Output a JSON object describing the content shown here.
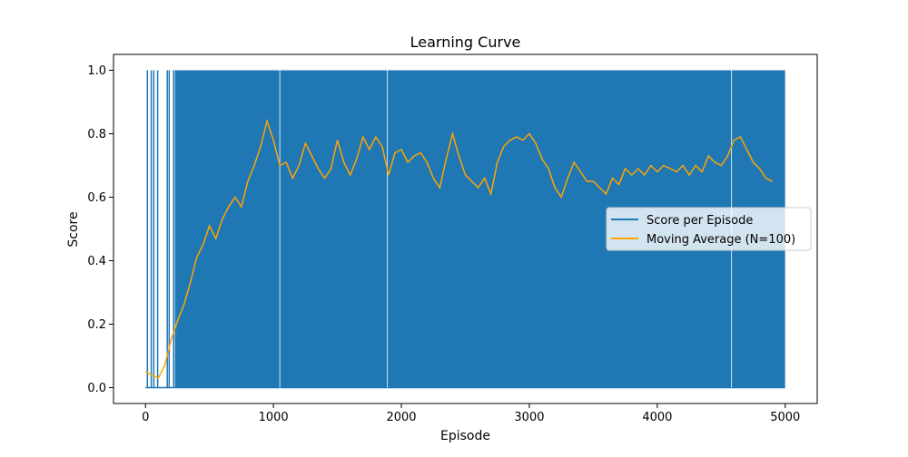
{
  "chart_data": {
    "type": "line",
    "title": "Learning Curve",
    "xlabel": "Episode",
    "ylabel": "Score",
    "xlim": [
      -250,
      5250
    ],
    "ylim": [
      -0.05,
      1.05
    ],
    "xticks": [
      0,
      1000,
      2000,
      3000,
      4000,
      5000
    ],
    "yticks": [
      0.0,
      0.2,
      0.4,
      0.6,
      0.8,
      1.0
    ],
    "x_range": [
      0,
      4999
    ],
    "legend_position": "center-right",
    "series": [
      {
        "name": "Score per Episode",
        "color": "#1f77b4",
        "description_values": "binary 0/1 per episode",
        "first_success_episodes": [
          15,
          45,
          65,
          95,
          170,
          185,
          220,
          235
        ],
        "dense_from_episode": 240,
        "values_range": [
          0,
          1
        ]
      },
      {
        "name": "Moving Average (N=100)",
        "color": "#ffa500",
        "window": 100,
        "x": [
          0,
          50,
          100,
          150,
          200,
          250,
          300,
          350,
          400,
          450,
          500,
          550,
          600,
          650,
          700,
          750,
          800,
          850,
          900,
          950,
          1000,
          1050,
          1100,
          1150,
          1200,
          1250,
          1300,
          1350,
          1400,
          1450,
          1500,
          1550,
          1600,
          1650,
          1700,
          1750,
          1800,
          1850,
          1900,
          1950,
          2000,
          2050,
          2100,
          2150,
          2200,
          2250,
          2300,
          2350,
          2400,
          2450,
          2500,
          2550,
          2600,
          2650,
          2700,
          2750,
          2800,
          2850,
          2900,
          2950,
          3000,
          3050,
          3100,
          3150,
          3200,
          3250,
          3300,
          3350,
          3400,
          3450,
          3500,
          3550,
          3600,
          3650,
          3700,
          3750,
          3800,
          3850,
          3900,
          3950,
          4000,
          4050,
          4100,
          4150,
          4200,
          4250,
          4300,
          4350,
          4400,
          4450,
          4500,
          4550,
          4600,
          4650,
          4700,
          4750,
          4800,
          4850,
          4900
        ],
        "values": [
          0.05,
          0.04,
          0.03,
          0.07,
          0.15,
          0.21,
          0.26,
          0.33,
          0.41,
          0.45,
          0.51,
          0.47,
          0.53,
          0.57,
          0.6,
          0.57,
          0.65,
          0.7,
          0.76,
          0.84,
          0.78,
          0.7,
          0.71,
          0.66,
          0.7,
          0.77,
          0.73,
          0.69,
          0.66,
          0.69,
          0.78,
          0.71,
          0.67,
          0.72,
          0.79,
          0.75,
          0.79,
          0.76,
          0.67,
          0.74,
          0.75,
          0.71,
          0.73,
          0.74,
          0.71,
          0.66,
          0.63,
          0.72,
          0.8,
          0.73,
          0.67,
          0.65,
          0.63,
          0.66,
          0.61,
          0.71,
          0.76,
          0.78,
          0.79,
          0.78,
          0.8,
          0.77,
          0.72,
          0.69,
          0.63,
          0.6,
          0.66,
          0.71,
          0.68,
          0.65,
          0.65,
          0.63,
          0.61,
          0.66,
          0.64,
          0.69,
          0.67,
          0.69,
          0.67,
          0.7,
          0.68,
          0.7,
          0.69,
          0.68,
          0.7,
          0.67,
          0.7,
          0.68,
          0.73,
          0.71,
          0.7,
          0.73,
          0.78,
          0.79,
          0.75,
          0.71,
          0.69,
          0.66,
          0.65
        ]
      }
    ]
  }
}
